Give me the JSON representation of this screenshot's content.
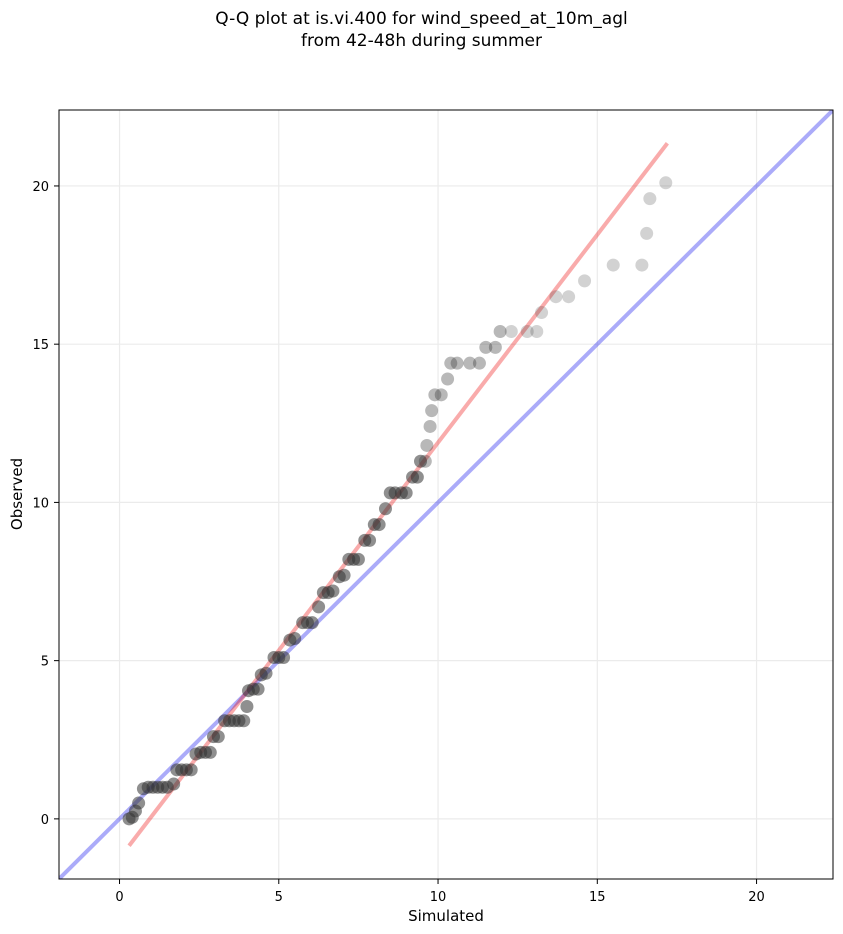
{
  "chart_data": {
    "type": "scatter",
    "title_lines": [
      "Q-Q plot at is.vi.400 for wind_speed_at_10m_agl",
      "from 42-48h during summer"
    ],
    "xlabel": "Simulated",
    "ylabel": "Observed",
    "xlim": [
      -1.9,
      22.4
    ],
    "ylim": [
      -1.9,
      22.4
    ],
    "x_ticks": [
      0,
      5,
      10,
      15,
      20
    ],
    "y_ticks": [
      0,
      5,
      10,
      15,
      20
    ],
    "grid": true,
    "colors": {
      "points": "#333333",
      "identity_line": "#0000ee",
      "fit_line": "#ee0000",
      "grid": "#ebebeb"
    },
    "identity_line": {
      "x": [
        -1.9,
        22.4
      ],
      "y": [
        -1.9,
        22.4
      ]
    },
    "fit_line": {
      "x": [
        0.3,
        17.2
      ],
      "y": [
        -0.85,
        21.35
      ]
    },
    "points": [
      {
        "x": 0.3,
        "y": 0.0
      },
      {
        "x": 0.4,
        "y": 0.05
      },
      {
        "x": 0.5,
        "y": 0.25
      },
      {
        "x": 0.6,
        "y": 0.5
      },
      {
        "x": 0.75,
        "y": 0.95
      },
      {
        "x": 0.9,
        "y": 1.0
      },
      {
        "x": 1.05,
        "y": 1.0
      },
      {
        "x": 1.2,
        "y": 1.0
      },
      {
        "x": 1.35,
        "y": 1.0
      },
      {
        "x": 1.5,
        "y": 1.0
      },
      {
        "x": 1.7,
        "y": 1.1
      },
      {
        "x": 1.8,
        "y": 1.55
      },
      {
        "x": 1.95,
        "y": 1.55
      },
      {
        "x": 2.1,
        "y": 1.55
      },
      {
        "x": 2.25,
        "y": 1.55
      },
      {
        "x": 2.4,
        "y": 2.05
      },
      {
        "x": 2.55,
        "y": 2.1
      },
      {
        "x": 2.7,
        "y": 2.1
      },
      {
        "x": 2.85,
        "y": 2.1
      },
      {
        "x": 2.95,
        "y": 2.6
      },
      {
        "x": 3.1,
        "y": 2.6
      },
      {
        "x": 3.3,
        "y": 3.1
      },
      {
        "x": 3.45,
        "y": 3.1
      },
      {
        "x": 3.6,
        "y": 3.1
      },
      {
        "x": 3.75,
        "y": 3.1
      },
      {
        "x": 3.9,
        "y": 3.1
      },
      {
        "x": 4.0,
        "y": 3.55
      },
      {
        "x": 4.05,
        "y": 4.05
      },
      {
        "x": 4.2,
        "y": 4.1
      },
      {
        "x": 4.35,
        "y": 4.1
      },
      {
        "x": 4.45,
        "y": 4.55
      },
      {
        "x": 4.6,
        "y": 4.6
      },
      {
        "x": 4.85,
        "y": 5.1
      },
      {
        "x": 5.0,
        "y": 5.1
      },
      {
        "x": 5.15,
        "y": 5.1
      },
      {
        "x": 5.35,
        "y": 5.65
      },
      {
        "x": 5.5,
        "y": 5.7
      },
      {
        "x": 5.75,
        "y": 6.2
      },
      {
        "x": 5.9,
        "y": 6.2
      },
      {
        "x": 6.05,
        "y": 6.2
      },
      {
        "x": 6.25,
        "y": 6.7
      },
      {
        "x": 6.4,
        "y": 7.15
      },
      {
        "x": 6.55,
        "y": 7.15
      },
      {
        "x": 6.7,
        "y": 7.2
      },
      {
        "x": 6.9,
        "y": 7.65
      },
      {
        "x": 7.05,
        "y": 7.7
      },
      {
        "x": 7.2,
        "y": 8.2
      },
      {
        "x": 7.35,
        "y": 8.2
      },
      {
        "x": 7.5,
        "y": 8.2
      },
      {
        "x": 7.7,
        "y": 8.8
      },
      {
        "x": 7.85,
        "y": 8.8
      },
      {
        "x": 8.0,
        "y": 9.3
      },
      {
        "x": 8.15,
        "y": 9.3
      },
      {
        "x": 8.35,
        "y": 9.8
      },
      {
        "x": 8.5,
        "y": 10.3
      },
      {
        "x": 8.65,
        "y": 10.3
      },
      {
        "x": 8.85,
        "y": 10.3
      },
      {
        "x": 9.0,
        "y": 10.3
      },
      {
        "x": 9.2,
        "y": 10.8
      },
      {
        "x": 9.35,
        "y": 10.8
      },
      {
        "x": 9.45,
        "y": 11.3
      },
      {
        "x": 9.6,
        "y": 11.3
      },
      {
        "x": 9.65,
        "y": 11.8
      },
      {
        "x": 9.75,
        "y": 12.4
      },
      {
        "x": 9.8,
        "y": 12.9
      },
      {
        "x": 9.9,
        "y": 13.4
      },
      {
        "x": 10.1,
        "y": 13.4
      },
      {
        "x": 10.3,
        "y": 13.9
      },
      {
        "x": 10.4,
        "y": 14.4
      },
      {
        "x": 10.6,
        "y": 14.4
      },
      {
        "x": 11.0,
        "y": 14.4
      },
      {
        "x": 11.3,
        "y": 14.4
      },
      {
        "x": 11.5,
        "y": 14.9
      },
      {
        "x": 11.8,
        "y": 14.9
      },
      {
        "x": 11.95,
        "y": 15.4
      },
      {
        "x": 12.3,
        "y": 15.4
      },
      {
        "x": 12.8,
        "y": 15.4
      },
      {
        "x": 13.1,
        "y": 15.4
      },
      {
        "x": 13.25,
        "y": 16.0
      },
      {
        "x": 13.7,
        "y": 16.5
      },
      {
        "x": 14.1,
        "y": 16.5
      },
      {
        "x": 14.6,
        "y": 17.0
      },
      {
        "x": 15.5,
        "y": 17.5
      },
      {
        "x": 16.4,
        "y": 17.5
      },
      {
        "x": 16.55,
        "y": 18.5
      },
      {
        "x": 16.65,
        "y": 19.6
      },
      {
        "x": 17.15,
        "y": 20.1
      }
    ]
  }
}
